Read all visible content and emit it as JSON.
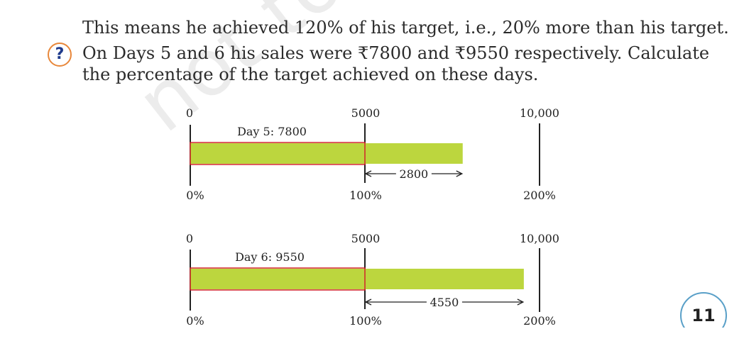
{
  "text": {
    "line1": "This means he achieved 120% of his target, i.e., 20% more than his target.",
    "question_line1": "On Days 5 and 6 his sales were ₹7800 and ₹9550 respectively. Calculate",
    "question_line2": "the percentage of the target achieved on these days."
  },
  "question_icon": "?",
  "icons": {
    "question": "question-mark-circle-icon"
  },
  "colors": {
    "bar_fill": "#bcd63e",
    "bar_outline": "#d2232a",
    "icon_ring": "#e8873a",
    "page_ring": "#5aa0c8"
  },
  "diagrams": [
    {
      "scale_left": "0",
      "scale_mid": "5000",
      "scale_right": "10,000",
      "bar_label": "Day 5: 7800",
      "value": 7800,
      "target": 5000,
      "max": 10000,
      "extra_label": "2800",
      "pct_left": "0%",
      "pct_mid": "100%",
      "pct_right": "200%"
    },
    {
      "scale_left": "0",
      "scale_mid": "5000",
      "scale_right": "10,000",
      "bar_label": "Day 6: 9550",
      "value": 9550,
      "target": 5000,
      "max": 10000,
      "extra_label": "4550",
      "pct_left": "0%",
      "pct_mid": "100%",
      "pct_right": "200%"
    }
  ],
  "page_number": "11"
}
